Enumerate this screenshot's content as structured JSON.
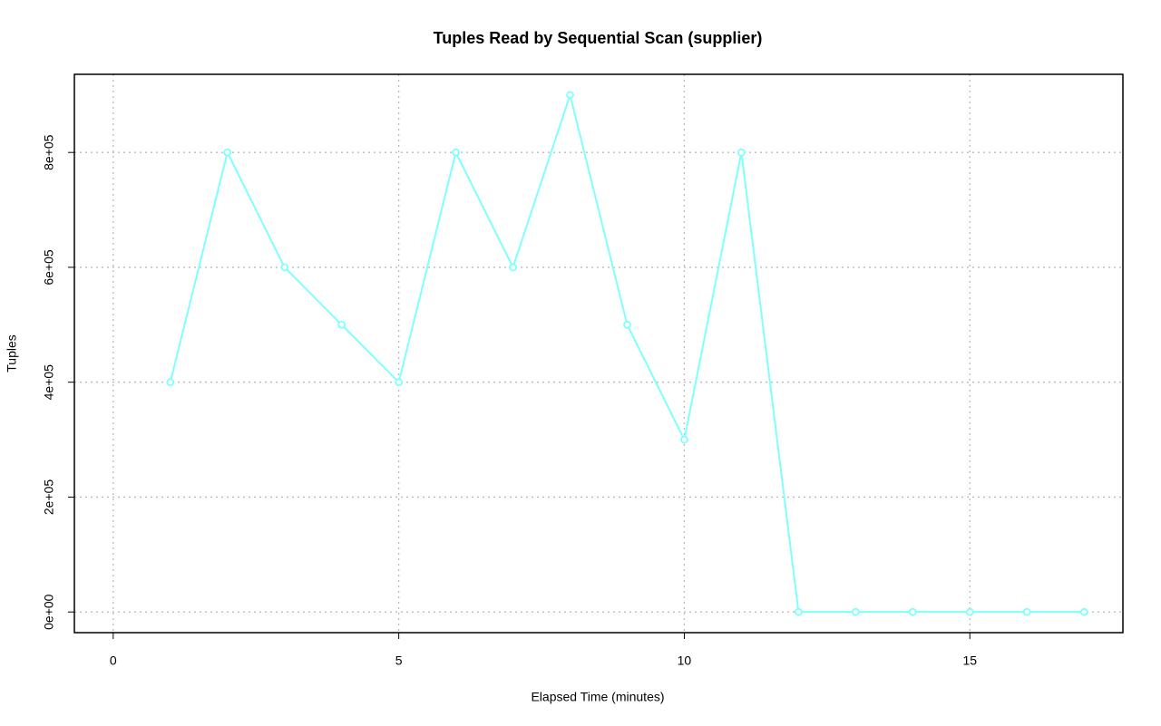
{
  "chart_data": {
    "type": "line",
    "title": "Tuples Read by Sequential Scan (supplier)",
    "x_label": "Elapsed Time (minutes)",
    "y_label": "Tuples",
    "x": [
      1,
      2,
      3,
      4,
      5,
      6,
      7,
      8,
      9,
      10,
      11,
      12,
      13,
      14,
      15,
      16,
      17
    ],
    "series": [
      {
        "color": "#7fffff",
        "values": [
          400000,
          800000,
          600000,
          500000,
          400000,
          800000,
          600000,
          900000,
          500000,
          300000,
          800000,
          0,
          0,
          0,
          0,
          0,
          0
        ]
      }
    ],
    "xlim": [
      -0.68,
      17.68
    ],
    "ylim": [
      -36000,
      936000
    ],
    "xticks": [
      0,
      5,
      10,
      15
    ],
    "yticks": [
      {
        "value": 0,
        "label": "0e+00"
      },
      {
        "value": 200000,
        "label": "2e+05"
      },
      {
        "value": 400000,
        "label": "4e+05"
      },
      {
        "value": 600000,
        "label": "6e+05"
      },
      {
        "value": 800000,
        "label": "8e+05"
      }
    ],
    "grid": true
  }
}
